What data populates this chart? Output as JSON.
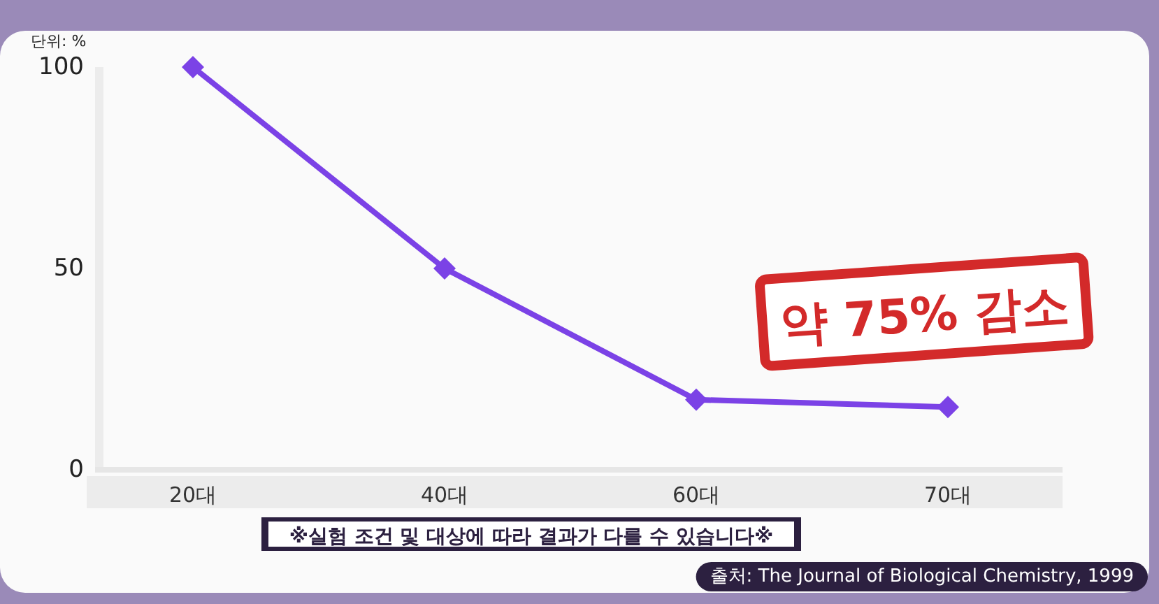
{
  "chart_data": {
    "type": "line",
    "ylabel": "단위: %",
    "categories": [
      "20대",
      "40대",
      "60대",
      "70대"
    ],
    "series": [
      {
        "color": "#7b42e6",
        "values": [
          100,
          50,
          17.4,
          15.6
        ]
      }
    ],
    "ylim": [
      0,
      100
    ],
    "yticks": [
      0,
      50,
      100
    ],
    "marker": "diamond",
    "grid": false,
    "annotations": [
      "약 75% 감소",
      "※실험 조건 및 대상에 따라 결과가 다를 수 있습니다※",
      "출처: The Journal of Biological Chemistry, 1999"
    ]
  }
}
